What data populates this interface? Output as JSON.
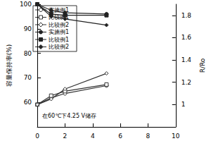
{
  "chart_data": {
    "type": "line",
    "annotation": "在60℃下4.25 V储存",
    "x_label": null,
    "y_label": "容量保持率(%)",
    "y2_label": "R/Ro",
    "x": [
      0,
      1,
      2,
      5
    ],
    "xlim": [
      0,
      10
    ],
    "xticks": [
      0,
      2,
      4,
      6,
      8,
      10
    ],
    "ylim": [
      50,
      100
    ],
    "yticks": [
      60,
      70,
      80,
      90,
      100
    ],
    "y2lim": [
      0.8,
      1.9
    ],
    "y2ticks": [
      1.0,
      1.2,
      1.4,
      1.6,
      1.8
    ],
    "grid": false,
    "series": [
      {
        "name": "实施例1",
        "color": "#333333",
        "marker": "circle_open",
        "axis": "y2",
        "values": [
          1.0,
          1.06,
          1.1,
          1.17
        ]
      },
      {
        "name": "比较例1",
        "color": "#333333",
        "marker": "rect_open",
        "axis": "y2",
        "values": [
          1.0,
          1.08,
          1.12,
          1.18
        ]
      },
      {
        "name": "比较例2",
        "color": "#333333",
        "marker": "diamond_open",
        "axis": "y2",
        "values": [
          1.0,
          1.05,
          1.14,
          1.28
        ]
      },
      {
        "name": "实施例1",
        "color": "#222222",
        "marker": "circle_filled",
        "axis": "y",
        "values": [
          100,
          97.5,
          96.5,
          96
        ]
      },
      {
        "name": "比较例1",
        "color": "#222222",
        "marker": "rect_filled",
        "axis": "y",
        "values": [
          100,
          96,
          95.5,
          95.5
        ]
      },
      {
        "name": "比较例2",
        "color": "#222222",
        "marker": "diamond_filled",
        "axis": "y",
        "values": [
          100,
          95,
          94,
          91.5
        ]
      }
    ]
  }
}
